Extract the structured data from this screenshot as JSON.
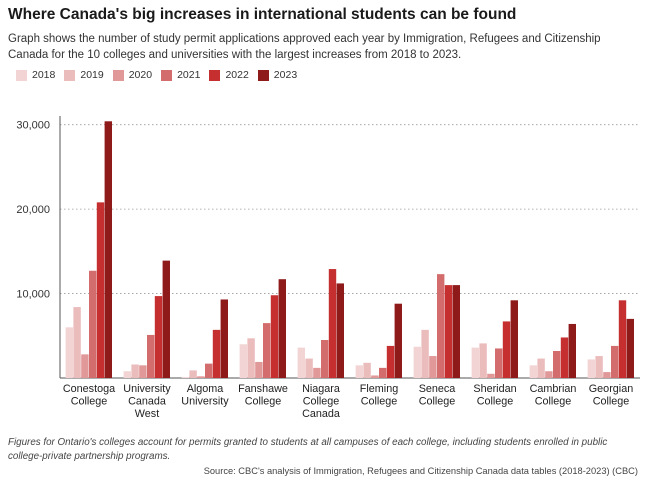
{
  "header": {
    "title": "Where Canada's big increases in international students can be found",
    "subtitle": "Graph shows the number of study permit applications approved each year by Immigration, Refugees and Citizenship Canada for the 10 colleges and universities with the largest increases from 2018 to 2023."
  },
  "footer": {
    "note": "Figures for Ontario's colleges account for permits granted to students at all campuses of each college, including students enrolled in public college-private partnership programs.",
    "source": "Source: CBC's analysis of Immigration, Refugees and Citizenship Canada data tables (2018-2023) (CBC)"
  },
  "chart_data": {
    "type": "bar",
    "categories": [
      "Conestoga College",
      "University Canada West",
      "Algoma University",
      "Fanshawe College",
      "Niagara College Canada",
      "Fleming College",
      "Seneca College",
      "Sheridan College",
      "Cambrian College",
      "Georgian College"
    ],
    "category_lines": [
      [
        "Conestoga",
        "College"
      ],
      [
        "University",
        "Canada",
        "West"
      ],
      [
        "Algoma",
        "University"
      ],
      [
        "Fanshawe",
        "College"
      ],
      [
        "Niagara",
        "College",
        "Canada"
      ],
      [
        "Fleming",
        "College"
      ],
      [
        "Seneca",
        "College"
      ],
      [
        "Sheridan",
        "College"
      ],
      [
        "Cambrian",
        "College"
      ],
      [
        "Georgian",
        "College"
      ]
    ],
    "series": [
      {
        "name": "2018",
        "color": "#f2d4d4",
        "values": [
          6000,
          800,
          100,
          4000,
          3600,
          1500,
          3700,
          3600,
          1500,
          2200
        ]
      },
      {
        "name": "2019",
        "color": "#ebbcbc",
        "values": [
          8400,
          1600,
          900,
          4700,
          2300,
          1800,
          5700,
          4100,
          2300,
          2600
        ]
      },
      {
        "name": "2020",
        "color": "#e09898",
        "values": [
          2800,
          1500,
          200,
          1900,
          1200,
          300,
          2600,
          500,
          800,
          700
        ]
      },
      {
        "name": "2021",
        "color": "#d36c6c",
        "values": [
          12700,
          5100,
          1700,
          6500,
          4500,
          1200,
          12300,
          3500,
          3200,
          3800
        ]
      },
      {
        "name": "2022",
        "color": "#c62f2f",
        "values": [
          20800,
          9700,
          5700,
          9800,
          12900,
          3800,
          11000,
          6700,
          4800,
          9200
        ]
      },
      {
        "name": "2023",
        "color": "#8e1a1a",
        "values": [
          30400,
          13900,
          9300,
          11700,
          11200,
          8800,
          11000,
          9200,
          6400,
          7000
        ]
      }
    ],
    "yticks": [
      10000,
      20000,
      30000
    ],
    "ytick_labels": [
      "10,000",
      "20,000",
      "30,000"
    ],
    "ylim": [
      0,
      31500
    ],
    "grid": true,
    "legend_position": "top-left"
  }
}
